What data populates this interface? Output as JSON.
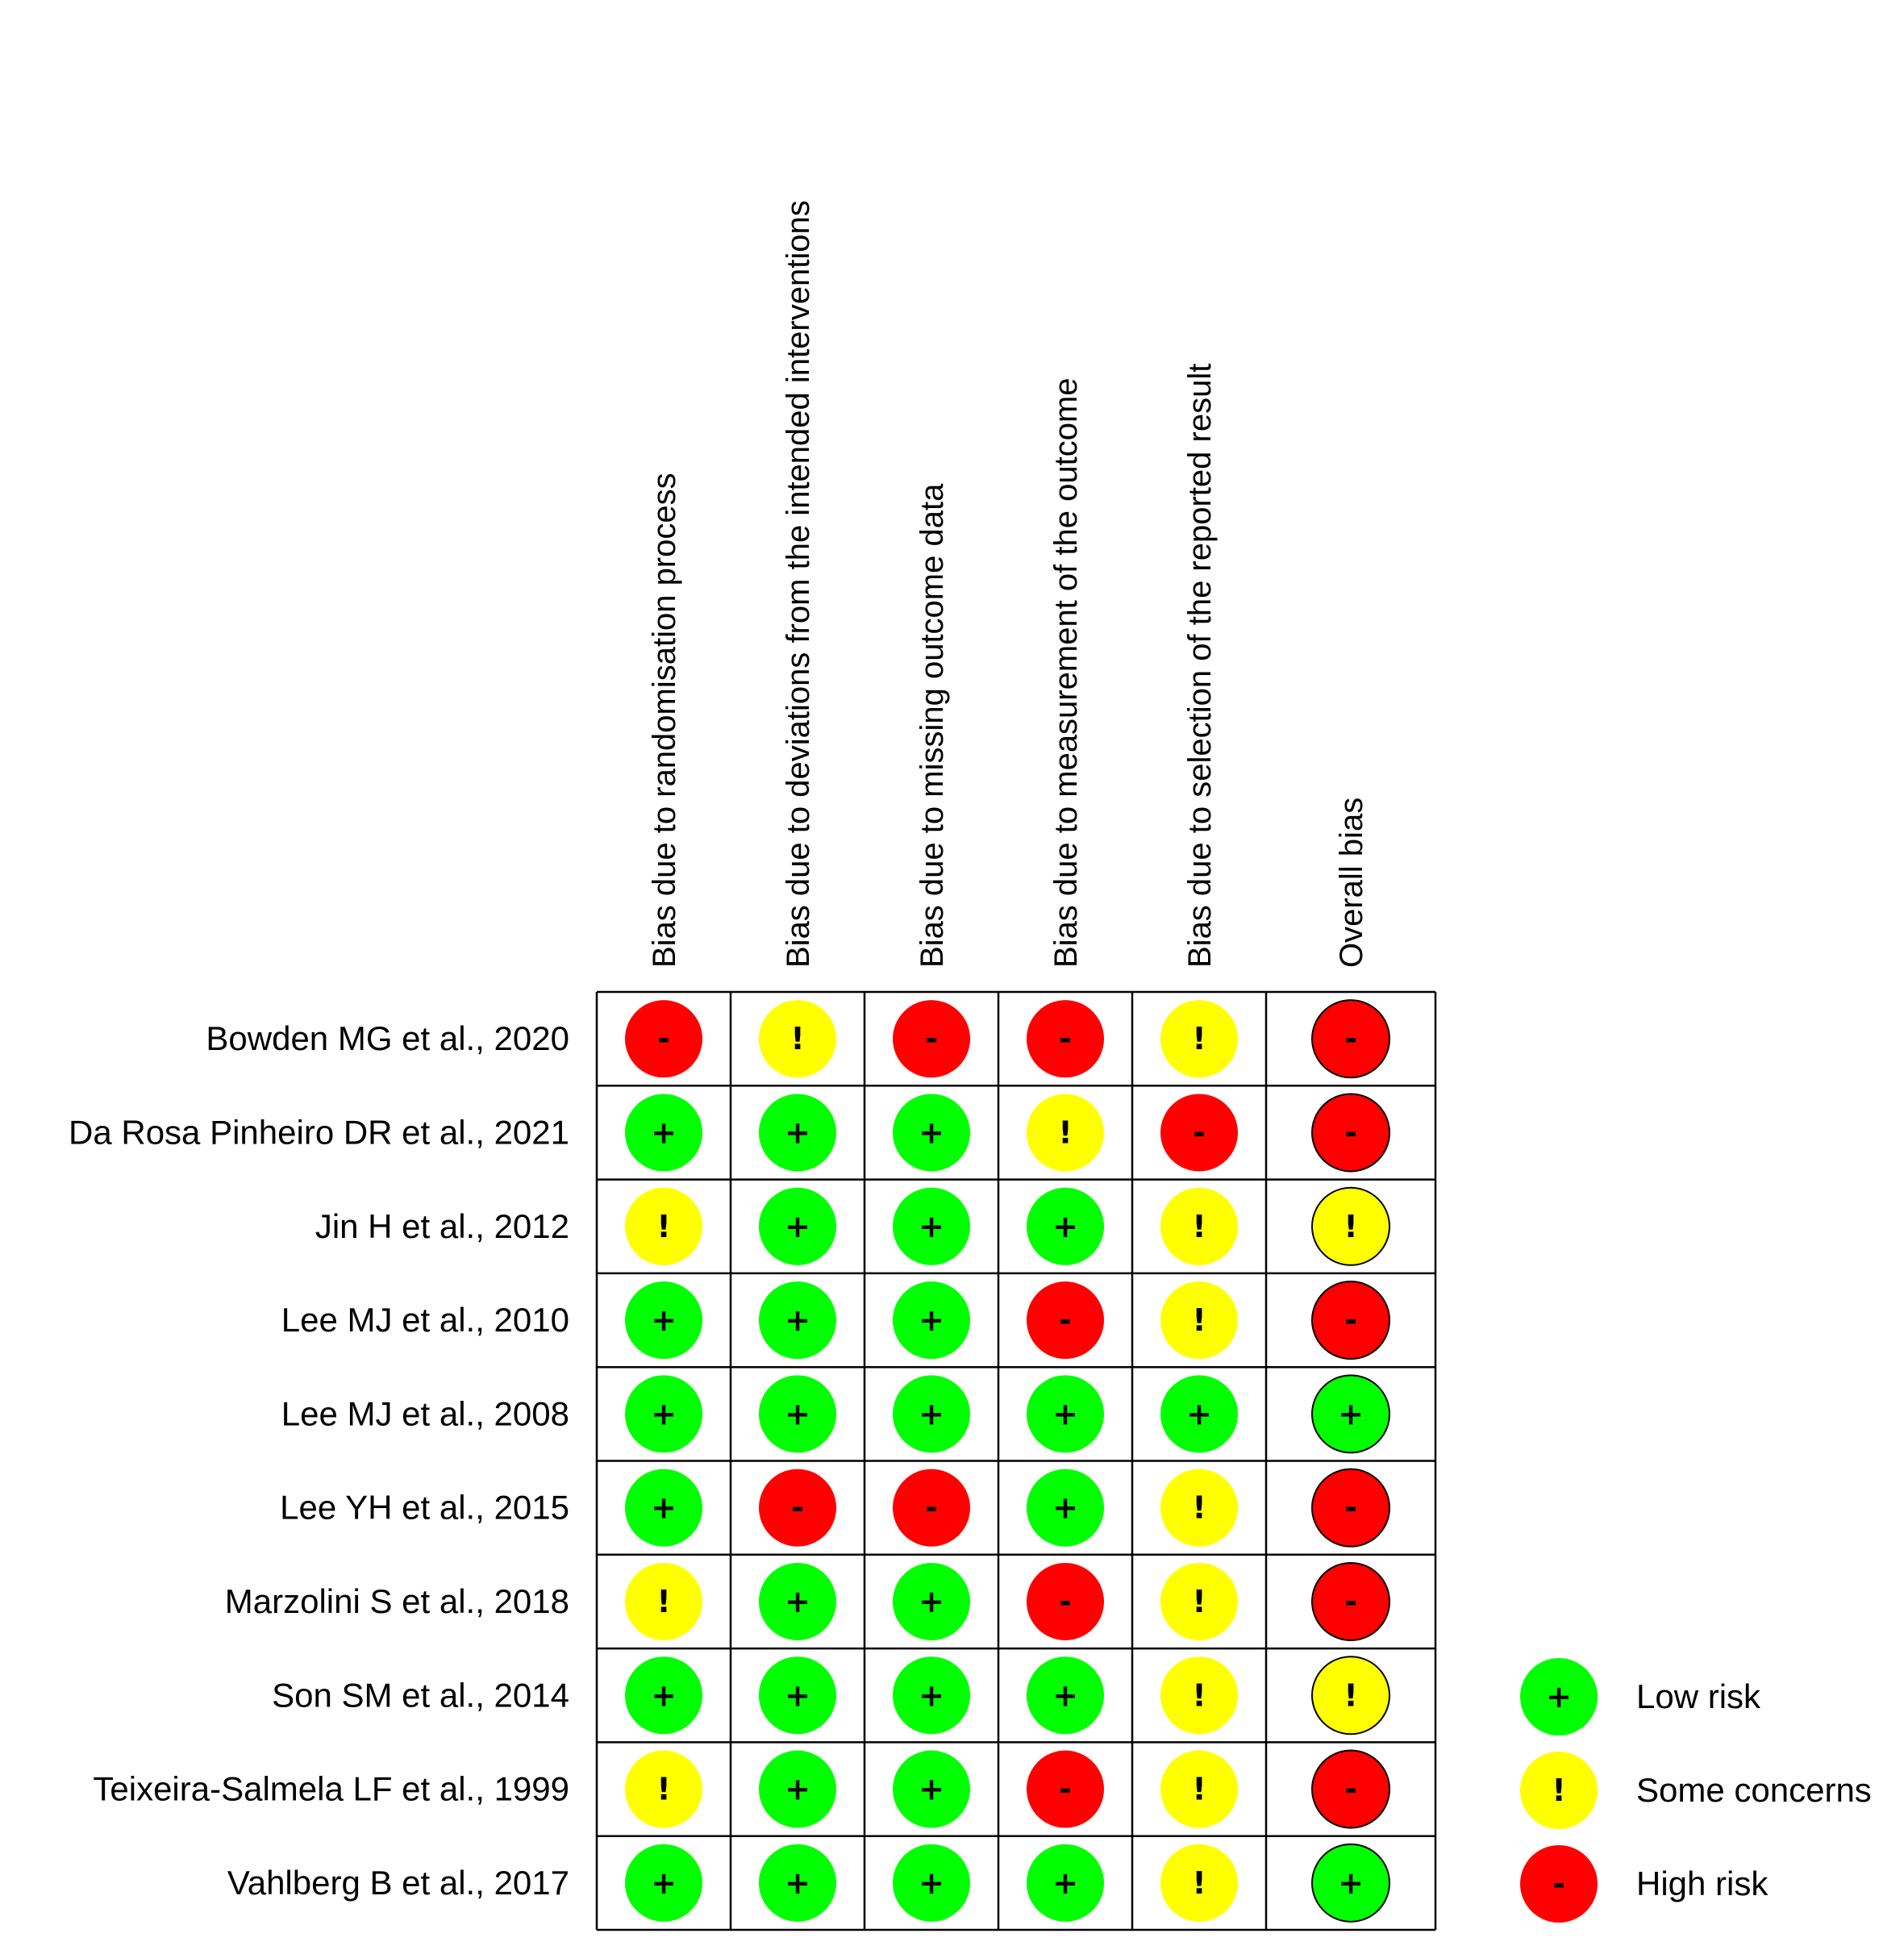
{
  "chart_data": {
    "type": "table",
    "domains": [
      "Bias due to randomisation process",
      "Bias due to deviations from the intended interventions",
      "Bias due to missing outcome data",
      "Bias due to measurement of the outcome",
      "Bias due to selection of the reported result",
      "Overall bias"
    ],
    "studies": [
      {
        "name": "Bowden MG et al., 2020",
        "judgements": [
          "high",
          "some",
          "high",
          "high",
          "some",
          "high"
        ]
      },
      {
        "name": "Da Rosa Pinheiro DR et al.,  2021",
        "judgements": [
          "low",
          "low",
          "low",
          "some",
          "high",
          "high"
        ]
      },
      {
        "name": "Jin H et al., 2012",
        "judgements": [
          "some",
          "low",
          "low",
          "low",
          "some",
          "some"
        ]
      },
      {
        "name": "Lee MJ et al., 2010",
        "judgements": [
          "low",
          "low",
          "low",
          "high",
          "some",
          "high"
        ]
      },
      {
        "name": "Lee MJ et al., 2008",
        "judgements": [
          "low",
          "low",
          "low",
          "low",
          "low",
          "low"
        ]
      },
      {
        "name": "Lee YH et al., 2015",
        "judgements": [
          "low",
          "high",
          "high",
          "low",
          "some",
          "high"
        ]
      },
      {
        "name": "Marzolini S et al., 2018",
        "judgements": [
          "some",
          "low",
          "low",
          "high",
          "some",
          "high"
        ]
      },
      {
        "name": "Son SM et al., 2014",
        "judgements": [
          "low",
          "low",
          "low",
          "low",
          "some",
          "some"
        ]
      },
      {
        "name": "Teixeira-Salmela LF et al., 1999",
        "judgements": [
          "some",
          "low",
          "low",
          "high",
          "some",
          "high"
        ]
      },
      {
        "name": "Vahlberg B et al., 2017",
        "judgements": [
          "low",
          "low",
          "low",
          "low",
          "some",
          "low"
        ]
      }
    ],
    "legend": [
      {
        "key": "low",
        "label": "Low risk",
        "symbol": "+",
        "color": "#00ff00"
      },
      {
        "key": "some",
        "label": "Some concerns",
        "symbol": "!",
        "color": "#ffff00"
      },
      {
        "key": "high",
        "label": "High risk",
        "symbol": "-",
        "color": "#ff0000"
      }
    ],
    "legend_placement": "bottom-right"
  }
}
